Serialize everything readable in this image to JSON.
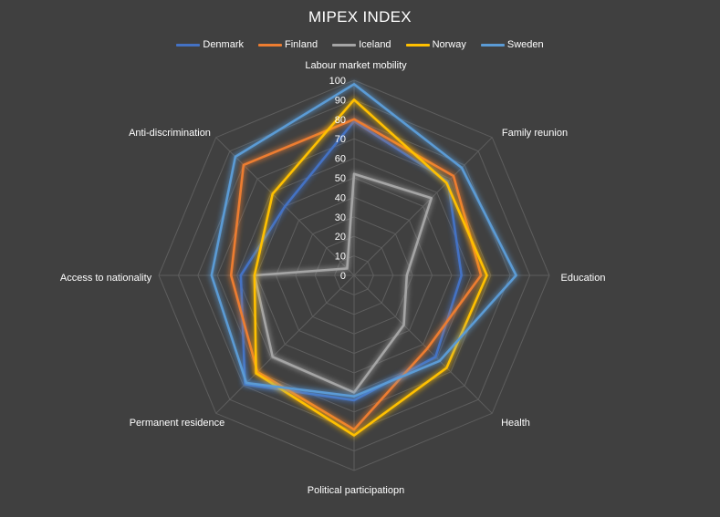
{
  "chart_data": {
    "type": "radar",
    "title": "MIPEX INDEX",
    "categories": [
      "Labour market mobility",
      "Family reunion",
      "Education",
      "Health",
      "Political participatiopn",
      "Permanent residence",
      "Access to nationality",
      "Anti-discrimination"
    ],
    "series": [
      {
        "name": "Denmark",
        "color": "#4472C4",
        "values": [
          79,
          68,
          55,
          59,
          64,
          79,
          58,
          50
        ]
      },
      {
        "name": "Finland",
        "color": "#ED7D31",
        "values": [
          80,
          72,
          65,
          53,
          79,
          70,
          63,
          80
        ]
      },
      {
        "name": "Iceland",
        "color": "#A5A5A5",
        "values": [
          52,
          56,
          27,
          36,
          60,
          59,
          51,
          5
        ]
      },
      {
        "name": "Norway",
        "color": "#FFC000",
        "values": [
          90,
          67,
          68,
          67,
          82,
          71,
          51,
          59
        ]
      },
      {
        "name": "Sweden",
        "color": "#5B9BD5",
        "values": [
          98,
          78,
          83,
          62,
          62,
          78,
          73,
          86
        ]
      }
    ],
    "rlim": [
      0,
      100
    ],
    "ticks": [
      "0",
      "10",
      "20",
      "30",
      "40",
      "50",
      "60",
      "70",
      "80",
      "90",
      "100"
    ],
    "legend": "top",
    "grid": true
  }
}
